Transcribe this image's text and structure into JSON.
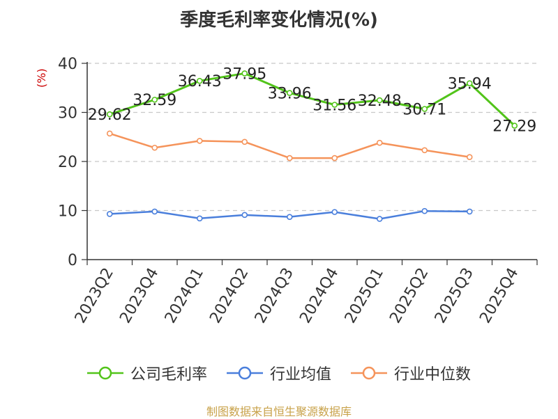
{
  "chart_data": {
    "type": "line",
    "title": "季度毛利率变化情况(%)",
    "ylabel": "(%)",
    "xlabel": "",
    "categories": [
      "2023Q2",
      "2023Q4",
      "2024Q1",
      "2024Q2",
      "2024Q3",
      "2024Q4",
      "2025Q1",
      "2025Q2",
      "2025Q3",
      "2025Q4"
    ],
    "ylim": [
      0,
      40
    ],
    "yticks": [
      0,
      10,
      20,
      30,
      40
    ],
    "grid": "horizontal-dashed",
    "legend_position": "bottom",
    "series": [
      {
        "name": "公司毛利率",
        "color": "#52c41a",
        "values": [
          29.62,
          32.59,
          36.43,
          37.95,
          33.96,
          31.56,
          32.48,
          30.71,
          35.94,
          27.29
        ],
        "labels": [
          "29.62",
          "32.59",
          "36.43",
          "37.95",
          "33.96",
          "31.56",
          "32.48",
          "30.71",
          "35.94",
          "27.29"
        ]
      },
      {
        "name": "行业均值",
        "color": "#4a7fdc",
        "values": [
          9.3,
          9.8,
          8.4,
          9.1,
          8.7,
          9.7,
          8.3,
          9.9,
          9.8,
          null
        ]
      },
      {
        "name": "行业中位数",
        "color": "#f5935a",
        "values": [
          25.7,
          22.8,
          24.2,
          24.0,
          20.7,
          20.7,
          23.8,
          22.3,
          20.9,
          null
        ]
      }
    ]
  },
  "source": "制图数据来自恒生聚源数据库"
}
